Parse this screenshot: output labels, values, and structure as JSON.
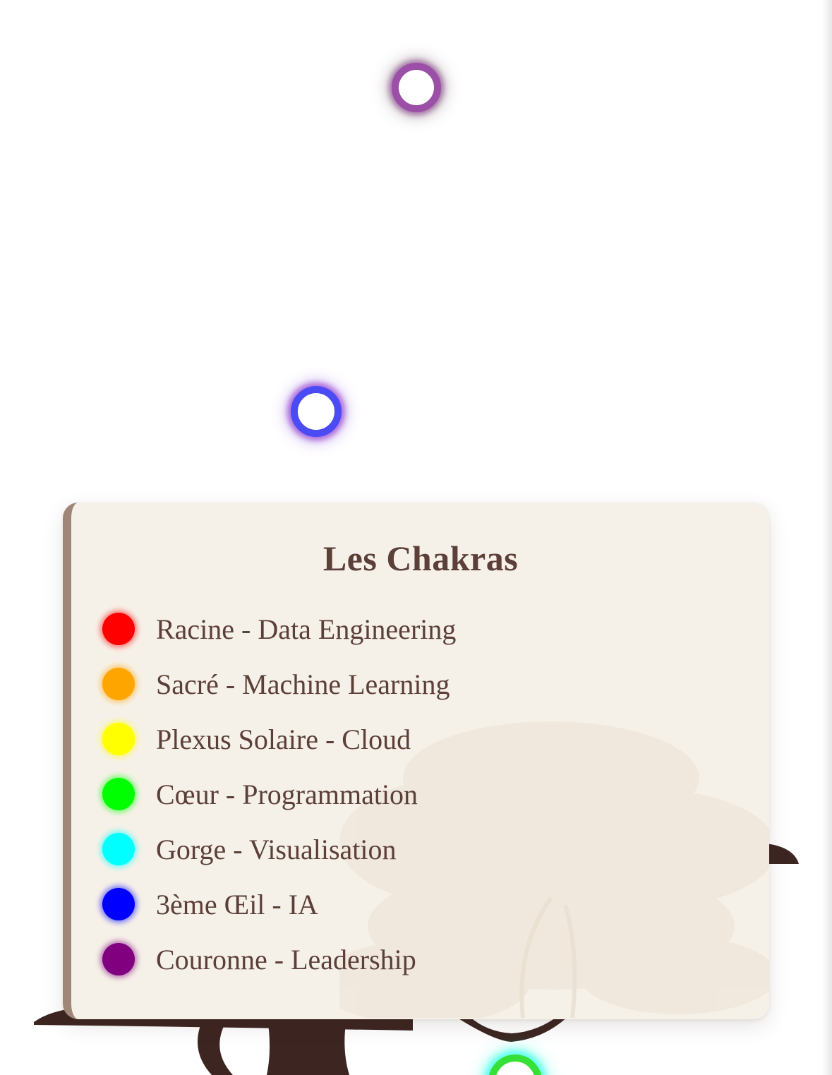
{
  "legend": {
    "title": "Les Chakras",
    "items": [
      {
        "label": "Racine - Data Engineering",
        "color": "#ff0000"
      },
      {
        "label": "Sacré - Machine Learning",
        "color": "#ffa500"
      },
      {
        "label": "Plexus Solaire - Cloud",
        "color": "#ffff00"
      },
      {
        "label": "Cœur - Programmation",
        "color": "#00ff00"
      },
      {
        "label": "Gorge - Visualisation",
        "color": "#00ffff"
      },
      {
        "label": "3ème Œil - IA",
        "color": "#0000ff"
      },
      {
        "label": "Couronne - Leadership",
        "color": "#800080"
      }
    ]
  },
  "nodes": {
    "crown": {
      "color": "#9b4fa6"
    },
    "third_eye": {
      "color": "#4b4bf5"
    },
    "heart": {
      "color": "#36e036"
    }
  },
  "colors": {
    "trunk": "#3d2622",
    "legend_bg": "#f6f1e8",
    "legend_accent": "#a08678",
    "text": "#5b3f38"
  }
}
